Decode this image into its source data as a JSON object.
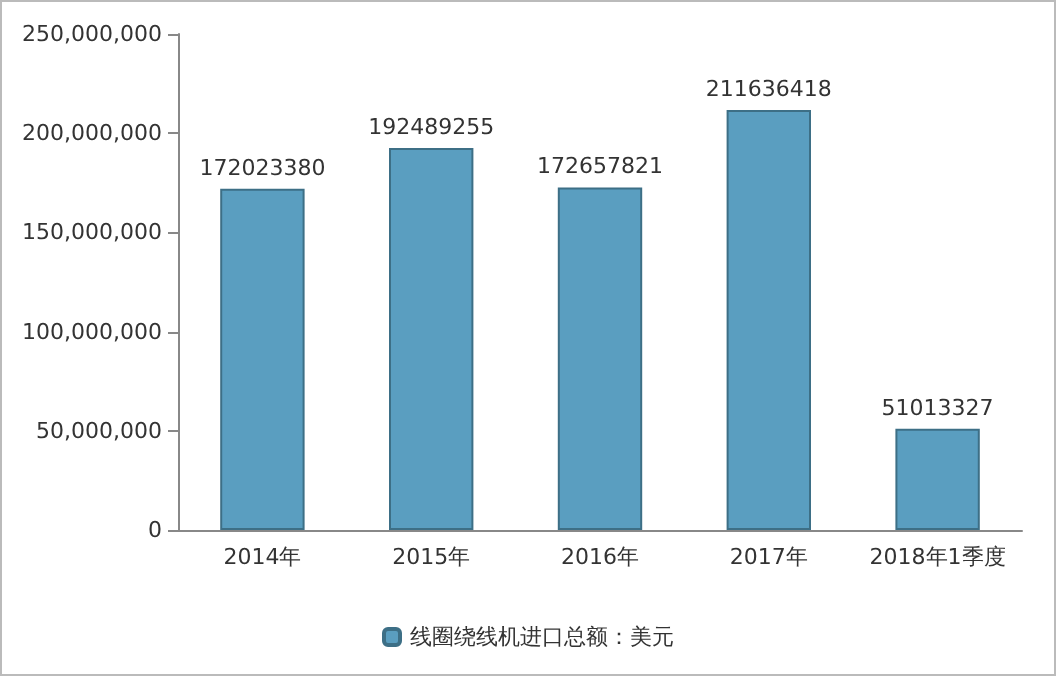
{
  "chart_data": {
    "type": "bar",
    "categories": [
      "2014年",
      "2015年",
      "2016年",
      "2017年",
      "2018年1季度"
    ],
    "series": [
      {
        "name": "线圈绕线机进口总额：美元",
        "color": "#5a9ec0",
        "values": [
          172023380,
          192489255,
          172657821,
          211636418,
          51013327
        ]
      }
    ],
    "ylim": [
      0,
      250000000
    ],
    "yticks": [
      0,
      {
        "value": 50000000,
        "label": "50,000,000"
      },
      {
        "value": 100000000,
        "label": "100,000,000"
      },
      {
        "value": 150000000,
        "label": "150,000,000"
      },
      {
        "value": 200000000,
        "label": "200,000,000"
      },
      {
        "value": 250000000,
        "label": "250,000,000"
      }
    ],
    "data_labels": true,
    "legend": "bottom",
    "grid": false
  }
}
